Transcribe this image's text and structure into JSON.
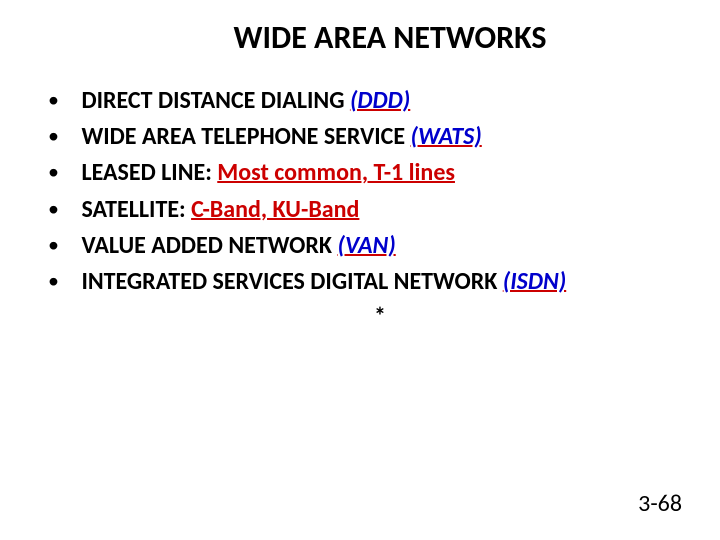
{
  "slide": {
    "title": "WIDE AREA NETWORKS",
    "items": [
      {
        "lead": "DIRECT DISTANCE DIALING ",
        "acronym": "(DDD)"
      },
      {
        "lead": "WIDE AREA TELEPHONE SERVICE ",
        "acronym": "(WATS)"
      },
      {
        "lead": "LEASED LINE: ",
        "redtext": "Most common, T-1 lines"
      },
      {
        "lead": "SATELLITE: ",
        "redtext": "C-Band, KU-Band"
      },
      {
        "lead": "VALUE ADDED NETWORK ",
        "acronym": "(VAN)"
      },
      {
        "lead": "INTEGRATED SERVICES DIGITAL NETWORK ",
        "acronym": "(ISDN)"
      }
    ],
    "mark": "*",
    "pagenum": "3-68"
  },
  "colors": {
    "text": "#000000",
    "acronym": "#0000cc",
    "redunder": "#cc0000",
    "background": "#ffffff"
  }
}
